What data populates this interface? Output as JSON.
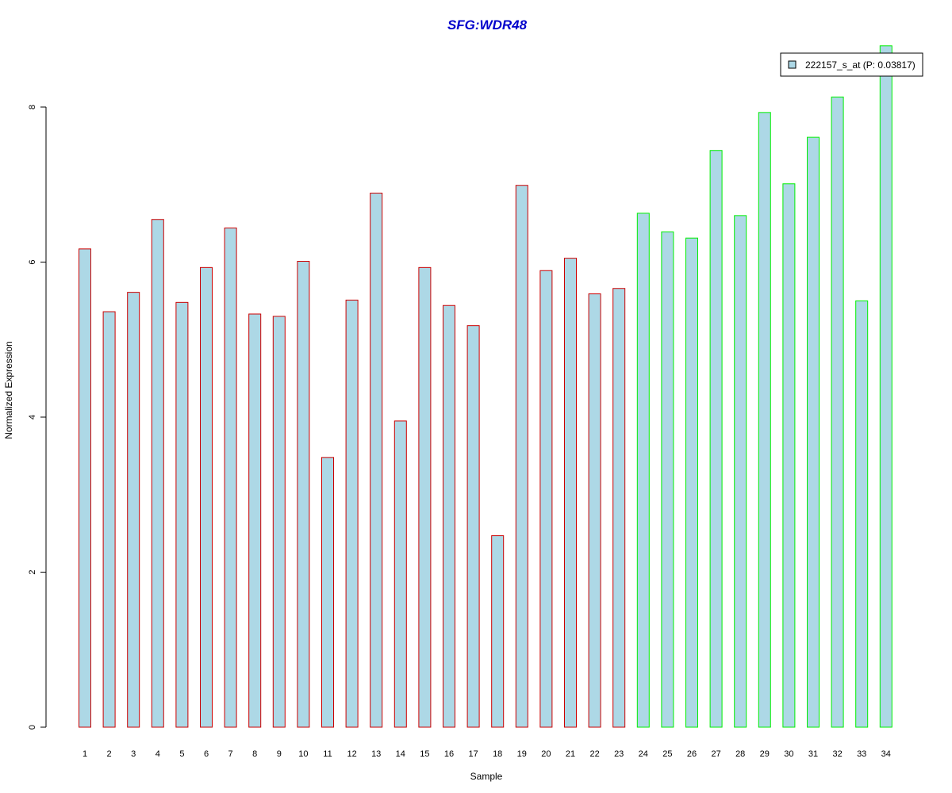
{
  "chart_data": {
    "type": "bar",
    "title": "SFG:WDR48",
    "title_color": "#0000CC",
    "xlabel": "Sample",
    "ylabel": "Normalized Expression",
    "ylim": [
      0,
      8.8
    ],
    "yticks": [
      0,
      2,
      4,
      6,
      8
    ],
    "grid": false,
    "categories": [
      "1",
      "2",
      "3",
      "4",
      "5",
      "6",
      "7",
      "8",
      "9",
      "10",
      "11",
      "12",
      "13",
      "14",
      "15",
      "16",
      "17",
      "18",
      "19",
      "20",
      "21",
      "22",
      "23",
      "24",
      "25",
      "26",
      "27",
      "28",
      "29",
      "30",
      "31",
      "32",
      "33",
      "34"
    ],
    "series": [
      {
        "name": "222157_s_at (P: 0.03817)",
        "values": [
          6.17,
          5.36,
          5.61,
          6.55,
          5.48,
          5.93,
          6.44,
          5.33,
          5.3,
          6.01,
          3.48,
          5.51,
          6.89,
          3.95,
          5.93,
          5.44,
          5.18,
          2.47,
          6.99,
          5.89,
          6.05,
          5.59,
          5.66,
          6.63,
          6.39,
          6.31,
          7.44,
          6.6,
          7.93,
          7.01,
          7.61,
          8.13,
          5.5,
          8.79
        ]
      }
    ],
    "bar_fill": "#ADD8E6",
    "group_border_colors": [
      "#CC0000",
      "#CC0000",
      "#CC0000",
      "#CC0000",
      "#CC0000",
      "#CC0000",
      "#CC0000",
      "#CC0000",
      "#CC0000",
      "#CC0000",
      "#CC0000",
      "#CC0000",
      "#CC0000",
      "#CC0000",
      "#CC0000",
      "#CC0000",
      "#CC0000",
      "#CC0000",
      "#CC0000",
      "#CC0000",
      "#CC0000",
      "#CC0000",
      "#CC0000",
      "#00EE00",
      "#00EE00",
      "#00EE00",
      "#00EE00",
      "#00EE00",
      "#00EE00",
      "#00EE00",
      "#00EE00",
      "#00EE00",
      "#00EE00",
      "#00EE00"
    ],
    "legend": {
      "placement": "top-right",
      "label": "222157_s_at (P: 0.03817)"
    }
  }
}
